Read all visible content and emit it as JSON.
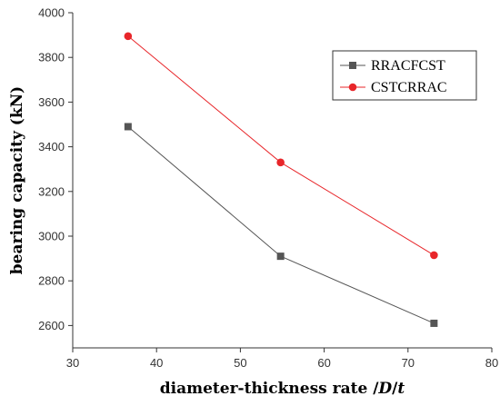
{
  "chart_data": {
    "type": "line",
    "xlabel": "diameter-thickness rate /D/t",
    "xlabel_parts": [
      "diameter-thickness rate /",
      "D",
      "/",
      "t"
    ],
    "ylabel": "bearing capacity (kN)",
    "xlim": [
      30,
      80
    ],
    "ylim": [
      2500,
      4000
    ],
    "xticks": [
      30,
      40,
      50,
      60,
      70,
      80
    ],
    "yticks": [
      2600,
      2800,
      3000,
      3200,
      3400,
      3600,
      3800,
      4000
    ],
    "grid": false,
    "legend_position": "top-right",
    "series": [
      {
        "name": "RRACFCST",
        "marker": "square",
        "color": "#555555",
        "x": [
          36.6,
          54.8,
          73.1
        ],
        "y": [
          3490,
          2910,
          2610
        ]
      },
      {
        "name": "CSTCRRAC",
        "marker": "circle",
        "color": "#e8262a",
        "x": [
          36.6,
          54.8,
          73.1
        ],
        "y": [
          3895,
          3330,
          2915
        ]
      }
    ]
  }
}
